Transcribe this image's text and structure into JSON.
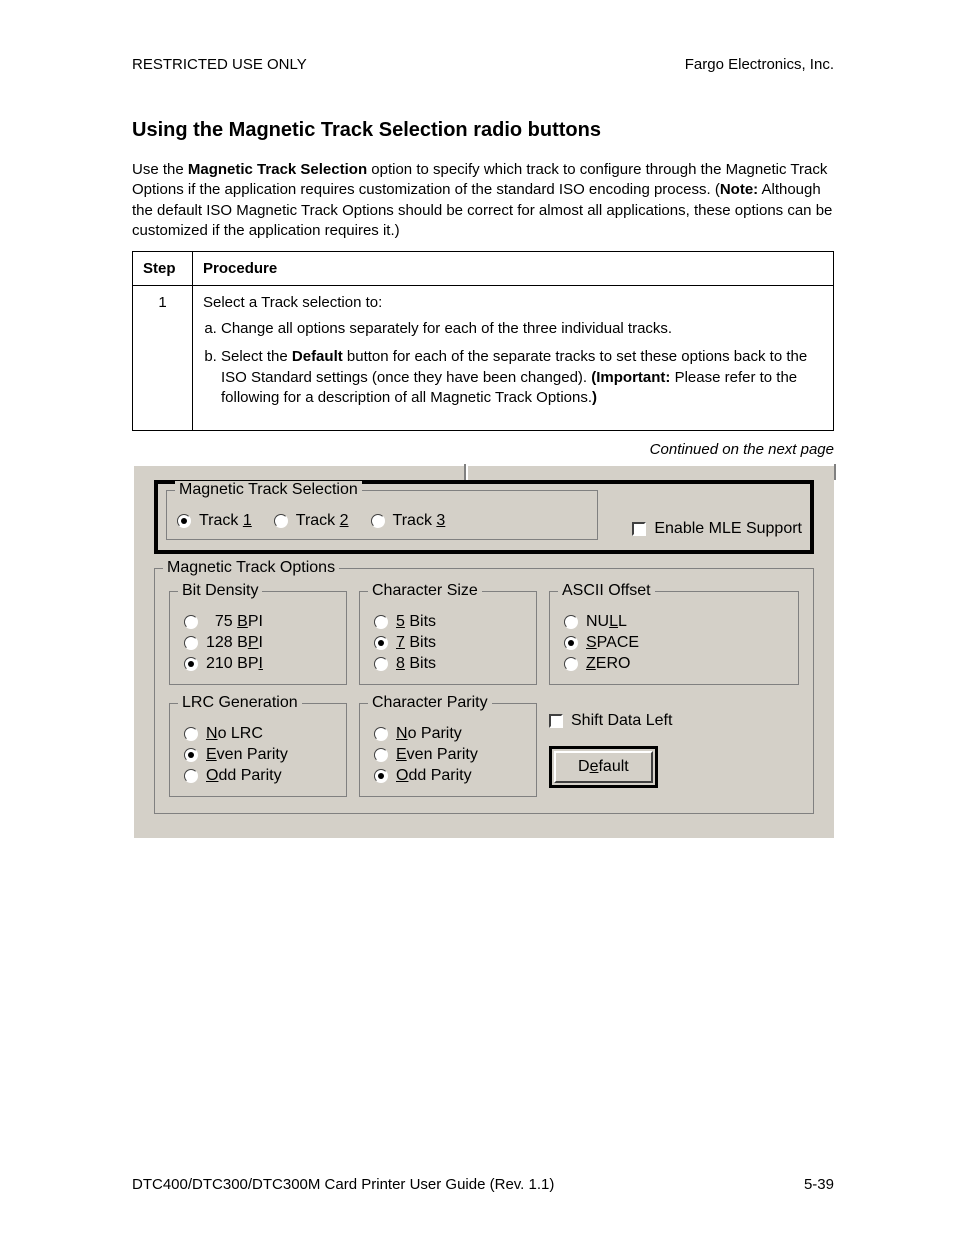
{
  "header": {
    "left": "RESTRICTED USE ONLY",
    "right": "Fargo Electronics, Inc."
  },
  "title": "Using the Magnetic Track Selection radio buttons",
  "intro": {
    "prefix": "Use the ",
    "bold1": "Magnetic Track Selection",
    "mid1": " option to specify which track to configure through the Magnetic Track Options if the application requires customization of the standard ISO encoding process. (",
    "bold2": "Note:",
    "mid2": "  Although the default ISO Magnetic Track Options should be correct for almost all applications, these options can be customized if the application requires it.)"
  },
  "table": {
    "headers": {
      "step": "Step",
      "procedure": "Procedure"
    },
    "step": "1",
    "lead": "Select a Track selection to:",
    "a": "Change all options separately for each of the three individual tracks.",
    "b_prefix": "Select the ",
    "b_bold1": "Default",
    "b_mid": " button for each of the separate tracks to set these options back to the ISO Standard settings (once they have been changed). ",
    "b_bold2": "(Important:",
    "b_mid2": "  Please refer to the following for a description of all Magnetic Track Options.",
    "b_bold3": ")"
  },
  "continued": "Continued on the next page",
  "dialog": {
    "track_selection": {
      "legend": "Magnetic Track Selection",
      "options": [
        {
          "pre": "Track ",
          "key": "1",
          "checked": true
        },
        {
          "pre": "Track ",
          "key": "2",
          "checked": false
        },
        {
          "pre": "Track ",
          "key": "3",
          "checked": false
        }
      ]
    },
    "mle": "Enable MLE Support",
    "options_legend": "Magnetic Track Options",
    "bit_density": {
      "legend": "Bit Density",
      "items": [
        {
          "pre": "  75 ",
          "u": "B",
          "post": "PI",
          "checked": false
        },
        {
          "pre": "128 B",
          "u": "P",
          "post": "I",
          "checked": false
        },
        {
          "pre": "210 BP",
          "u": "I",
          "post": "",
          "checked": true
        }
      ]
    },
    "char_size": {
      "legend": "Character Size",
      "items": [
        {
          "u": "5",
          "post": " Bits",
          "checked": false
        },
        {
          "u": "7",
          "post": " Bits",
          "checked": true
        },
        {
          "u": "8",
          "post": " Bits",
          "checked": false
        }
      ]
    },
    "ascii_offset": {
      "legend": "ASCII Offset",
      "items": [
        {
          "pre": "NU",
          "u": "L",
          "post": "L",
          "checked": false
        },
        {
          "u": "S",
          "post": "PACE",
          "checked": true
        },
        {
          "u": "Z",
          "post": "ERO",
          "checked": false
        }
      ]
    },
    "lrc": {
      "legend": "LRC Generation",
      "items": [
        {
          "u": "N",
          "post": "o LRC",
          "checked": false
        },
        {
          "u": "E",
          "post": "ven Parity",
          "checked": true
        },
        {
          "u": "O",
          "post": "dd Parity",
          "checked": false
        }
      ]
    },
    "char_parity": {
      "legend": "Character Parity",
      "items": [
        {
          "u": "N",
          "post": "o Parity",
          "checked": false
        },
        {
          "u": "E",
          "post": "ven Parity",
          "checked": false
        },
        {
          "u": "O",
          "post": "dd Parity",
          "checked": true
        }
      ]
    },
    "shift": "Shift Data Left",
    "default_btn": {
      "pre": "D",
      "u": "e",
      "post": "fault"
    }
  },
  "footer": {
    "left": "DTC400/DTC300/DTC300M Card Printer User Guide (Rev. 1.1)",
    "right": "5-39"
  },
  "colors": {
    "dialog_bg": "#d4d0c8",
    "page_bg": "#ffffff",
    "text": "#000000",
    "border_dark": "#808080",
    "border_light": "#ffffff"
  }
}
